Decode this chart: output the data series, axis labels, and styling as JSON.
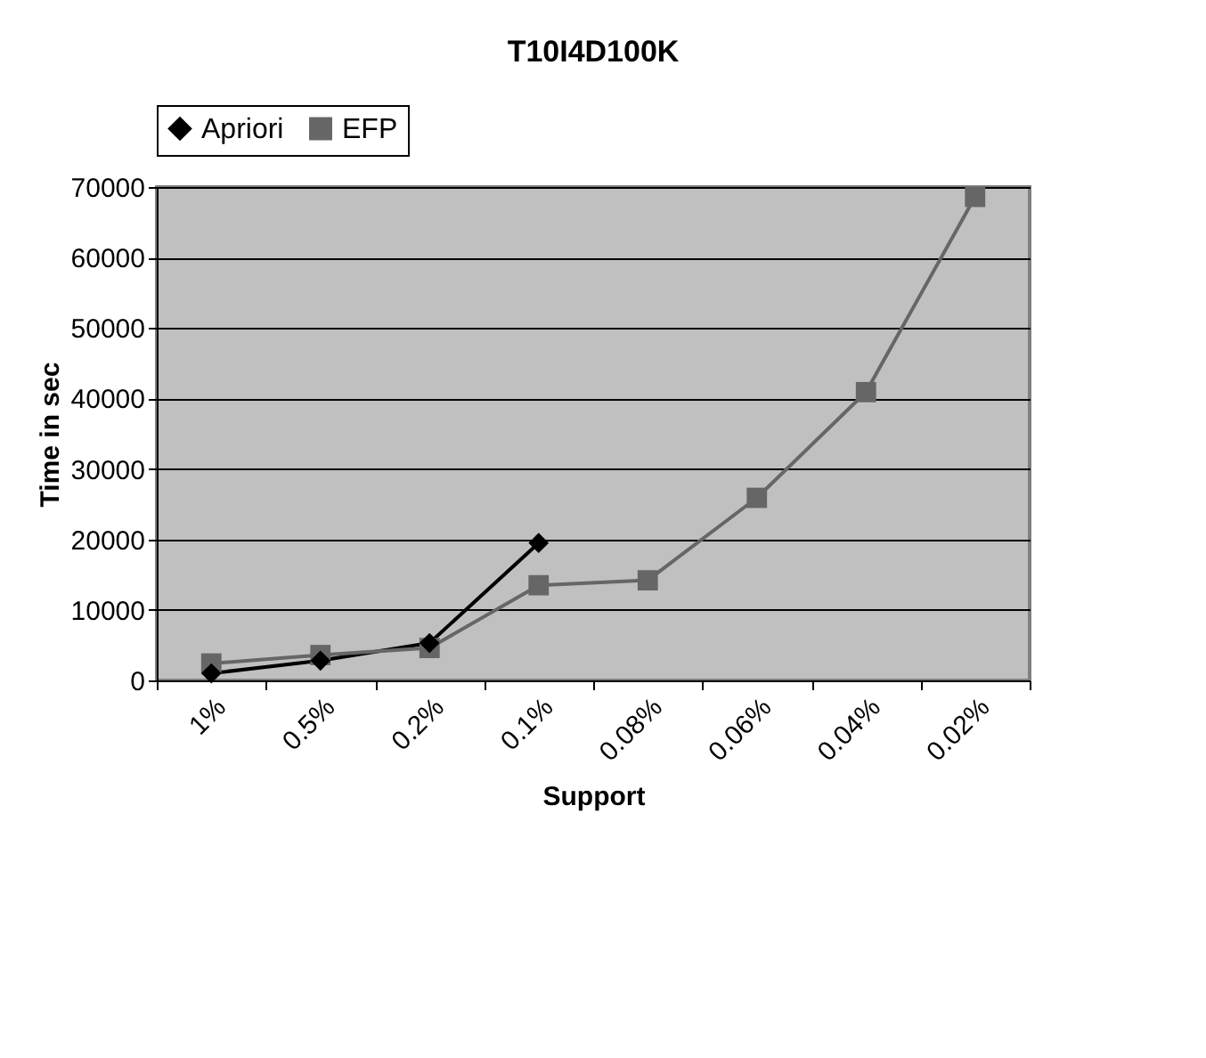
{
  "chart_data": {
    "type": "line",
    "title": "T10I4D100K",
    "xlabel": "Support",
    "ylabel": "Time in sec",
    "categories": [
      "1%",
      "0.5%",
      "0.2%",
      "0.1%",
      "0.08%",
      "0.06%",
      "0.04%",
      "0.02%"
    ],
    "series": [
      {
        "name": "Apriori",
        "color": "#000000",
        "marker": "diamond",
        "values": [
          1000,
          2800,
          5300,
          19500,
          null,
          null,
          null,
          null
        ]
      },
      {
        "name": "EFP",
        "color": "#666666",
        "marker": "square",
        "values": [
          2400,
          3600,
          4600,
          13500,
          14200,
          25900,
          40900,
          68600
        ]
      }
    ],
    "ylim": [
      0,
      70000
    ],
    "yticks": [
      0,
      10000,
      20000,
      30000,
      40000,
      50000,
      60000,
      70000
    ],
    "grid": "y",
    "legend": "top"
  }
}
